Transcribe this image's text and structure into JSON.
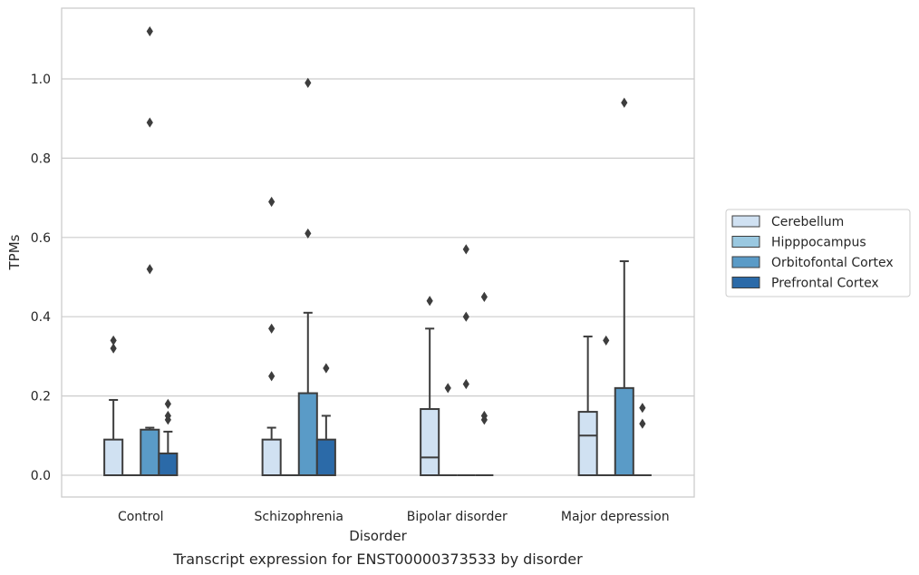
{
  "chart_data": {
    "type": "box",
    "xlabel": "Disorder",
    "ylabel": "TPMs",
    "caption": "Transcript expression for ENST00000373533 by disorder",
    "ylim": [
      -0.055,
      1.18
    ],
    "yticks": [
      0.0,
      0.2,
      0.4,
      0.6,
      0.8,
      1.0
    ],
    "ytick_labels": [
      "0.0",
      "0.2",
      "0.4",
      "0.6",
      "0.8",
      "1.0"
    ],
    "grid": "horizontal",
    "legend_position": "right",
    "categories": [
      "Control",
      "Schizophrenia",
      "Bipolar disorder",
      "Major depression"
    ],
    "series": [
      {
        "name": "Cerebellum",
        "color": "#d0e1f2",
        "boxes": [
          {
            "q1": 0.0,
            "median": 0.0,
            "q3": 0.09,
            "whisker_low": 0.0,
            "whisker_high": 0.19,
            "outliers": [
              0.32,
              0.34
            ]
          },
          {
            "q1": 0.0,
            "median": 0.0,
            "q3": 0.09,
            "whisker_low": 0.0,
            "whisker_high": 0.12,
            "outliers": [
              0.25,
              0.37,
              0.69
            ]
          },
          {
            "q1": 0.0,
            "median": 0.045,
            "q3": 0.167,
            "whisker_low": 0.0,
            "whisker_high": 0.37,
            "outliers": [
              0.44
            ]
          },
          {
            "q1": 0.0,
            "median": 0.1,
            "q3": 0.16,
            "whisker_low": 0.0,
            "whisker_high": 0.35,
            "outliers": []
          }
        ]
      },
      {
        "name": "Hipppocampus",
        "color": "#9ac8e0",
        "boxes": [
          {
            "q1": 0.0,
            "median": 0.0,
            "q3": 0.0,
            "whisker_low": 0.0,
            "whisker_high": 0.0,
            "outliers": []
          },
          {
            "q1": 0.0,
            "median": 0.0,
            "q3": 0.0,
            "whisker_low": 0.0,
            "whisker_high": 0.0,
            "outliers": []
          },
          {
            "q1": 0.0,
            "median": 0.0,
            "q3": 0.0,
            "whisker_low": 0.0,
            "whisker_high": 0.0,
            "outliers": [
              0.22
            ]
          },
          {
            "q1": 0.0,
            "median": 0.0,
            "q3": 0.0,
            "whisker_low": 0.0,
            "whisker_high": 0.0,
            "outliers": [
              0.34
            ]
          }
        ]
      },
      {
        "name": "Orbitofontal Cortex",
        "color": "#5a9bc7",
        "boxes": [
          {
            "q1": 0.0,
            "median": 0.0,
            "q3": 0.115,
            "whisker_low": 0.0,
            "whisker_high": 0.12,
            "outliers": [
              0.52,
              0.89,
              1.12
            ]
          },
          {
            "q1": 0.0,
            "median": 0.0,
            "q3": 0.207,
            "whisker_low": 0.0,
            "whisker_high": 0.41,
            "outliers": [
              0.61,
              0.99
            ]
          },
          {
            "q1": 0.0,
            "median": 0.0,
            "q3": 0.0,
            "whisker_low": 0.0,
            "whisker_high": 0.0,
            "outliers": [
              0.23,
              0.4,
              0.57
            ]
          },
          {
            "q1": 0.0,
            "median": 0.0,
            "q3": 0.22,
            "whisker_low": 0.0,
            "whisker_high": 0.54,
            "outliers": [
              0.94
            ]
          }
        ]
      },
      {
        "name": "Prefrontal Cortex",
        "color": "#2b6aa8",
        "boxes": [
          {
            "q1": 0.0,
            "median": 0.0,
            "q3": 0.055,
            "whisker_low": 0.0,
            "whisker_high": 0.11,
            "outliers": [
              0.14,
              0.15,
              0.18
            ]
          },
          {
            "q1": 0.0,
            "median": 0.0,
            "q3": 0.09,
            "whisker_low": 0.0,
            "whisker_high": 0.15,
            "outliers": [
              0.27
            ]
          },
          {
            "q1": 0.0,
            "median": 0.0,
            "q3": 0.0,
            "whisker_low": 0.0,
            "whisker_high": 0.0,
            "outliers": [
              0.14,
              0.15,
              0.45
            ]
          },
          {
            "q1": 0.0,
            "median": 0.0,
            "q3": 0.0,
            "whisker_low": 0.0,
            "whisker_high": 0.0,
            "outliers": [
              0.13,
              0.17
            ]
          }
        ]
      }
    ]
  }
}
